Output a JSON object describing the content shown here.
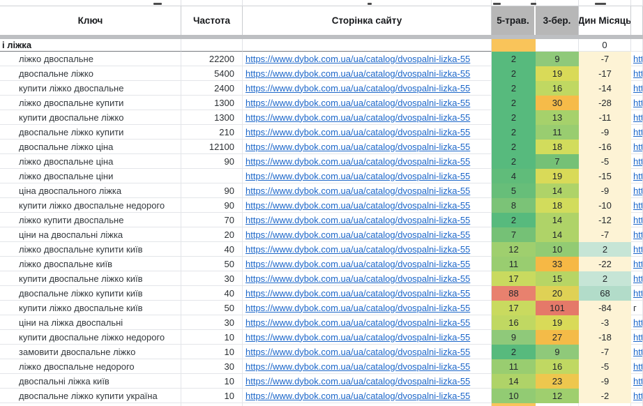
{
  "header": {
    "columns": [
      {
        "label": "Ключ"
      },
      {
        "label": "Частота"
      },
      {
        "label": "Сторінка сайту"
      },
      {
        "label": "5-трав."
      },
      {
        "label": "3-бер."
      },
      {
        "label": "Дин Місяць"
      },
      {
        "label": ""
      }
    ]
  },
  "group_row": {
    "label": "і ліжка",
    "dyn": "0"
  },
  "site_url": "https://www.dybok.com.ua/ua/catalog/dvospalni-lizka-55",
  "colors": {
    "link": "#1b66c9",
    "header_gray": "#b7b7b7",
    "divider": "#bdbfc2",
    "orange_cell": "#f9c45a",
    "cream_negative": "#fdf3d5",
    "teal_positive_small": "#c6e5d6",
    "teal_positive_large": "#b2dcc9"
  },
  "rows": [
    {
      "key": "ліжко двоспальне",
      "freq": "22200",
      "may5": "2",
      "may5_bg": "#57ba7d",
      "mar3": "9",
      "mar3_bg": "#8fc97a",
      "dyn": "-7",
      "dyn_bg": "#fdf3d5"
    },
    {
      "key": "двоспальне ліжко",
      "freq": "5400",
      "may5": "2",
      "may5_bg": "#57ba7d",
      "mar3": "19",
      "mar3_bg": "#d9da58",
      "dyn": "-17",
      "dyn_bg": "#fdf3d5"
    },
    {
      "key": "купити ліжко двоспальне",
      "freq": "2400",
      "may5": "2",
      "may5_bg": "#57ba7d",
      "mar3": "16",
      "mar3_bg": "#c0d862",
      "dyn": "-14",
      "dyn_bg": "#fdf3d5"
    },
    {
      "key": "ліжко двоспальне купити",
      "freq": "1300",
      "may5": "2",
      "may5_bg": "#57ba7d",
      "mar3": "30",
      "mar3_bg": "#f6bb49",
      "dyn": "-28",
      "dyn_bg": "#fdf3d5"
    },
    {
      "key": "купити двоспальне ліжко",
      "freq": "1300",
      "may5": "2",
      "may5_bg": "#57ba7d",
      "mar3": "13",
      "mar3_bg": "#a6d16b",
      "dyn": "-11",
      "dyn_bg": "#fdf3d5"
    },
    {
      "key": "двоспальне ліжко купити",
      "freq": "210",
      "may5": "2",
      "may5_bg": "#57ba7d",
      "mar3": "11",
      "mar3_bg": "#99cd70",
      "dyn": "-9",
      "dyn_bg": "#fdf3d5"
    },
    {
      "key": "двоспальне ліжко ціна",
      "freq": "12100",
      "may5": "2",
      "may5_bg": "#57ba7d",
      "mar3": "18",
      "mar3_bg": "#d2dc5c",
      "dyn": "-16",
      "dyn_bg": "#fdf3d5"
    },
    {
      "key": "ліжко двоспальне ціна",
      "freq": "90",
      "may5": "2",
      "may5_bg": "#57ba7d",
      "mar3": "7",
      "mar3_bg": "#75c176",
      "dyn": "-5",
      "dyn_bg": "#fdf3d5"
    },
    {
      "key": "ліжко двоспальне ціни",
      "freq": "",
      "may5": "4",
      "may5_bg": "#60bc7a",
      "mar3": "19",
      "mar3_bg": "#d9da58",
      "dyn": "-15",
      "dyn_bg": "#fdf3d5"
    },
    {
      "key": "ціна двоспального ліжка",
      "freq": "90",
      "may5": "5",
      "may5_bg": "#67be79",
      "mar3": "14",
      "mar3_bg": "#afd368",
      "dyn": "-9",
      "dyn_bg": "#fdf3d5"
    },
    {
      "key": "купити ліжко двоспальне недорого",
      "freq": "90",
      "may5": "8",
      "may5_bg": "#7bc377",
      "mar3": "18",
      "mar3_bg": "#d2dc5c",
      "dyn": "-10",
      "dyn_bg": "#fdf3d5"
    },
    {
      "key": "ліжко купити двоспальне",
      "freq": "70",
      "may5": "2",
      "may5_bg": "#57ba7d",
      "mar3": "14",
      "mar3_bg": "#afd368",
      "dyn": "-12",
      "dyn_bg": "#fdf3d5"
    },
    {
      "key": "ціни на двоспальні ліжка",
      "freq": "20",
      "may5": "7",
      "may5_bg": "#75c176",
      "mar3": "14",
      "mar3_bg": "#afd368",
      "dyn": "-7",
      "dyn_bg": "#fdf3d5"
    },
    {
      "key": "ліжко двоспальне купити київ",
      "freq": "40",
      "may5": "12",
      "may5_bg": "#9fcf6e",
      "mar3": "10",
      "mar3_bg": "#92cb73",
      "dyn": "2",
      "dyn_bg": "#c6e5d6"
    },
    {
      "key": "ліжко двоспальне київ",
      "freq": "50",
      "may5": "11",
      "may5_bg": "#99cd70",
      "mar3": "33",
      "mar3_bg": "#f6b845",
      "dyn": "-22",
      "dyn_bg": "#fdf3d5"
    },
    {
      "key": "купити двоспальне ліжко київ",
      "freq": "30",
      "may5": "17",
      "may5_bg": "#c9da5f",
      "mar3": "15",
      "mar3_bg": "#b7d565",
      "dyn": "2",
      "dyn_bg": "#c6e5d6"
    },
    {
      "key": "двоспальне ліжко купити київ",
      "freq": "40",
      "may5": "88",
      "may5_bg": "#e8816e",
      "mar3": "20",
      "mar3_bg": "#dfd155",
      "dyn": "68",
      "dyn_bg": "#b2dcc9"
    },
    {
      "key": "купити ліжко двоспальне київ",
      "freq": "50",
      "may5": "17",
      "may5_bg": "#c9da5f",
      "mar3": "101",
      "mar3_bg": "#e57969",
      "dyn": "-84",
      "dyn_bg": "#fdf3d5",
      "next_text": "г"
    },
    {
      "key": "ціни на ліжка двоспальні",
      "freq": "30",
      "may5": "16",
      "may5_bg": "#c0d862",
      "mar3": "19",
      "mar3_bg": "#d9da58",
      "dyn": "-3",
      "dyn_bg": "#fdf3d5"
    },
    {
      "key": "купити двоспальне ліжко недорого",
      "freq": "10",
      "may5": "9",
      "may5_bg": "#8fc97a",
      "mar3": "27",
      "mar3_bg": "#f4bb48",
      "dyn": "-18",
      "dyn_bg": "#fdf3d5"
    },
    {
      "key": "замовити двоспальне ліжко",
      "freq": "10",
      "may5": "2",
      "may5_bg": "#57ba7d",
      "mar3": "9",
      "mar3_bg": "#8fc97a",
      "dyn": "-7",
      "dyn_bg": "#fdf3d5"
    },
    {
      "key": "ліжко двоспальне недорого",
      "freq": "30",
      "may5": "11",
      "may5_bg": "#99cd70",
      "mar3": "16",
      "mar3_bg": "#c0d862",
      "dyn": "-5",
      "dyn_bg": "#fdf3d5"
    },
    {
      "key": "двоспальні ліжка київ",
      "freq": "10",
      "may5": "14",
      "may5_bg": "#afd368",
      "mar3": "23",
      "mar3_bg": "#eec74e",
      "dyn": "-9",
      "dyn_bg": "#fdf3d5"
    },
    {
      "key": "двоспальне ліжко купити україна",
      "freq": "10",
      "may5": "10",
      "may5_bg": "#92cb73",
      "mar3": "12",
      "mar3_bg": "#9fcf6e",
      "dyn": "-2",
      "dyn_bg": "#fdf3d5"
    }
  ]
}
